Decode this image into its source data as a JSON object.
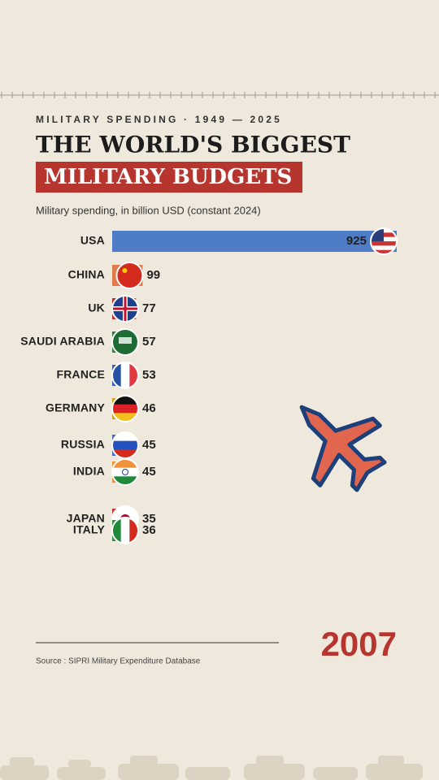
{
  "chart_data": {
    "type": "bar",
    "orientation": "horizontal",
    "kicker": "MILITARY SPENDING · 1949 — 2025",
    "title": "THE WORLD'S BIGGEST",
    "title_highlight": "MILITARY BUDGETS",
    "subtitle": "Military spending, in billion USD (constant 2024)",
    "categories": [
      "USA",
      "CHINA",
      "UK",
      "SAUDI ARABIA",
      "FRANCE",
      "GERMANY",
      "RUSSIA",
      "INDIA",
      "JAPAN",
      "ITALY"
    ],
    "values": [
      925,
      99,
      77,
      57,
      53,
      46,
      45,
      45,
      35,
      36
    ],
    "colors": [
      "#4f7cc6",
      "#e07b4c",
      "#b7352f",
      "#2f7a3a",
      "#3a5fb0",
      "#d4a020",
      "#4a6fc0",
      "#e8913a",
      "#c0392f",
      "#3a8a45"
    ],
    "year": "2007",
    "source": "Source : SIPRI Military Expenditure Database"
  }
}
